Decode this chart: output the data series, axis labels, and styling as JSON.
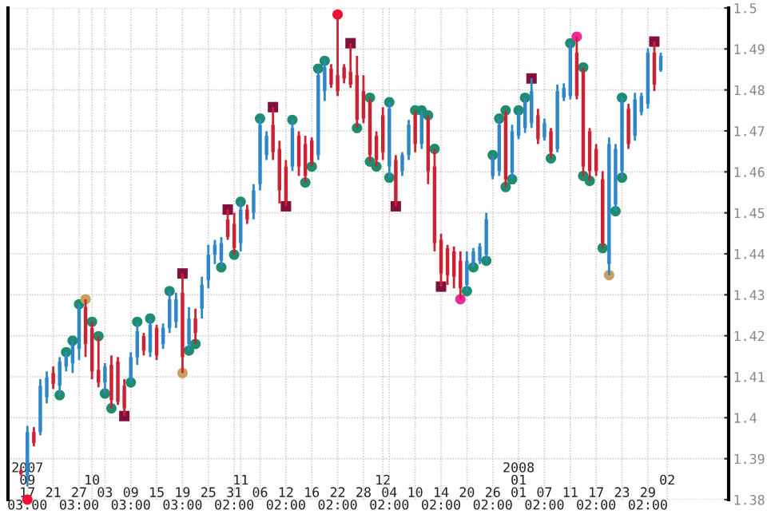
{
  "chart_data": {
    "type": "candlestick",
    "categories": [
      null,
      "2007\n09\n17\n03:00",
      null,
      null,
      null,
      "\n\n21\n",
      null,
      null,
      null,
      "\n\n27\n03:00",
      null,
      "\n10\n\n",
      null,
      "\n\n03\n",
      null,
      null,
      null,
      "\n\n09\n03:00",
      null,
      null,
      null,
      "\n\n15\n",
      null,
      null,
      null,
      "\n\n19\n03:00",
      null,
      null,
      null,
      "\n\n25\n",
      null,
      null,
      null,
      "\n\n31\n02:00",
      "\n11\n\n",
      null,
      null,
      "\n\n06\n",
      null,
      null,
      null,
      "\n\n12\n02:00",
      null,
      null,
      null,
      "\n\n16\n",
      null,
      null,
      null,
      "\n\n22\n02:00",
      null,
      null,
      null,
      "\n\n28\n",
      null,
      null,
      "\n12\n\n",
      "\n\n04\n02:00",
      null,
      null,
      null,
      "\n\n10\n",
      null,
      null,
      null,
      "\n\n14\n02:00",
      null,
      null,
      null,
      "\n\n20\n",
      null,
      null,
      null,
      "\n\n26\n02:00",
      null,
      null,
      null,
      "2008\n01\n01\n",
      null,
      null,
      null,
      "\n\n07\n02:00",
      null,
      null,
      null,
      "\n\n11\n",
      null,
      null,
      null,
      "\n\n17\n02:00",
      null,
      null,
      null,
      "\n\n23\n",
      null,
      null,
      null,
      "\n\n29\n02:00",
      null,
      null,
      "\n02\n\n"
    ],
    "ohlc": [
      [
        1.3871,
        1.3875,
        1.3859,
        1.3863
      ],
      [
        1.386,
        1.398,
        1.3832,
        1.3965
      ],
      [
        1.3965,
        1.3977,
        1.393,
        1.3938
      ],
      [
        1.3965,
        1.4094,
        1.3957,
        1.4078
      ],
      [
        1.405,
        1.4113,
        1.4035,
        1.4098
      ],
      [
        1.4109,
        1.4125,
        1.407,
        1.4082
      ],
      [
        1.4078,
        1.4148,
        1.4055,
        1.4137
      ],
      [
        1.4125,
        1.416,
        1.4113,
        1.4148
      ],
      [
        1.4133,
        1.4188,
        1.4109,
        1.418
      ],
      [
        1.4168,
        1.4277,
        1.4141,
        1.4266
      ],
      [
        1.427,
        1.4289,
        1.4148,
        1.418
      ],
      [
        1.4219,
        1.4234,
        1.4094,
        1.4113
      ],
      [
        1.4117,
        1.4199,
        1.4074,
        1.4086
      ],
      [
        1.4086,
        1.4133,
        1.4059,
        1.4125
      ],
      [
        1.4129,
        1.4152,
        1.4023,
        1.4043
      ],
      [
        1.4137,
        1.4148,
        1.4031,
        1.4039
      ],
      [
        1.4078,
        1.4094,
        1.4004,
        1.4023
      ],
      [
        1.4094,
        1.416,
        1.4086,
        1.4148
      ],
      [
        1.4148,
        1.4234,
        1.4129,
        1.4211
      ],
      [
        1.4199,
        1.4207,
        1.4152,
        1.4164
      ],
      [
        1.416,
        1.4242,
        1.4148,
        1.4227
      ],
      [
        1.4219,
        1.4227,
        1.4141,
        1.4152
      ],
      [
        1.418,
        1.423,
        1.4168,
        1.4219
      ],
      [
        1.4219,
        1.4309,
        1.4207,
        1.4289
      ],
      [
        1.4234,
        1.4305,
        1.4219,
        1.4289
      ],
      [
        1.4305,
        1.4352,
        1.4109,
        1.4148
      ],
      [
        1.418,
        1.427,
        1.4164,
        1.4242
      ],
      [
        1.4242,
        1.4266,
        1.418,
        1.4207
      ],
      [
        1.4266,
        1.4344,
        1.4242,
        1.4324
      ],
      [
        1.4336,
        1.4422,
        1.4316,
        1.4398
      ],
      [
        1.4398,
        1.4434,
        1.4375,
        1.4422
      ],
      [
        1.4383,
        1.4441,
        1.4367,
        1.4426
      ],
      [
        1.4484,
        1.4508,
        1.4434,
        1.4441
      ],
      [
        1.4473,
        1.45,
        1.4398,
        1.4414
      ],
      [
        1.4426,
        1.4527,
        1.4406,
        1.4508
      ],
      [
        1.4508,
        1.452,
        1.4473,
        1.4484
      ],
      [
        1.45,
        1.457,
        1.4484,
        1.4555
      ],
      [
        1.457,
        1.473,
        1.4555,
        1.4715
      ],
      [
        1.4641,
        1.4699,
        1.4629,
        1.4688
      ],
      [
        1.4715,
        1.4758,
        1.4629,
        1.4648
      ],
      [
        1.4656,
        1.4676,
        1.4523,
        1.4555
      ],
      [
        1.4613,
        1.4629,
        1.4516,
        1.4527
      ],
      [
        1.4613,
        1.4727,
        1.4602,
        1.4707
      ],
      [
        1.4688,
        1.4699,
        1.459,
        1.4613
      ],
      [
        1.4668,
        1.4688,
        1.4574,
        1.459
      ],
      [
        1.4676,
        1.4684,
        1.4613,
        1.4625
      ],
      [
        1.4641,
        1.4852,
        1.4629,
        1.4836
      ],
      [
        1.4797,
        1.4871,
        1.4773,
        1.4855
      ],
      [
        1.4852,
        1.4863,
        1.4805,
        1.4813
      ],
      [
        1.4836,
        1.4984,
        1.4785,
        1.4797
      ],
      [
        1.4855,
        1.4863,
        1.4816,
        1.4828
      ],
      [
        1.4844,
        1.4914,
        1.4805,
        1.4813
      ],
      [
        1.4836,
        1.4883,
        1.4707,
        1.4727
      ],
      [
        1.4797,
        1.4836,
        1.4719,
        1.473
      ],
      [
        1.477,
        1.4781,
        1.4625,
        1.4641
      ],
      [
        1.4688,
        1.4699,
        1.4613,
        1.4629
      ],
      [
        1.4738,
        1.4758,
        1.4629,
        1.4648
      ],
      [
        1.4613,
        1.477,
        1.4586,
        1.4754
      ],
      [
        1.4629,
        1.4641,
        1.4516,
        1.4527
      ],
      [
        1.4602,
        1.4648,
        1.459,
        1.4641
      ],
      [
        1.4641,
        1.4727,
        1.4629,
        1.4715
      ],
      [
        1.4738,
        1.475,
        1.4648,
        1.4668
      ],
      [
        1.4668,
        1.475,
        1.4656,
        1.4738
      ],
      [
        1.4727,
        1.4738,
        1.457,
        1.4602
      ],
      [
        1.4613,
        1.4656,
        1.4406,
        1.4426
      ],
      [
        1.4434,
        1.4449,
        1.432,
        1.4352
      ],
      [
        1.4414,
        1.4422,
        1.4324,
        1.4348
      ],
      [
        1.4406,
        1.4418,
        1.4316,
        1.4344
      ],
      [
        1.4383,
        1.4406,
        1.4289,
        1.4316
      ],
      [
        1.4324,
        1.4406,
        1.4309,
        1.4383
      ],
      [
        1.4375,
        1.4414,
        1.4367,
        1.4406
      ],
      [
        1.4383,
        1.4426,
        1.4375,
        1.4418
      ],
      [
        1.4398,
        1.45,
        1.4383,
        1.4484
      ],
      [
        1.459,
        1.4641,
        1.4582,
        1.4633
      ],
      [
        1.4602,
        1.473,
        1.459,
        1.4715
      ],
      [
        1.4738,
        1.475,
        1.4563,
        1.4582
      ],
      [
        1.4598,
        1.4715,
        1.4582,
        1.4699
      ],
      [
        1.4688,
        1.475,
        1.468,
        1.4738
      ],
      [
        1.4707,
        1.4781,
        1.4695,
        1.477
      ],
      [
        1.4719,
        1.4828,
        1.4707,
        1.4797
      ],
      [
        1.4738,
        1.4754,
        1.4668,
        1.468
      ],
      [
        1.4684,
        1.473,
        1.4676,
        1.4719
      ],
      [
        1.4699,
        1.4707,
        1.4633,
        1.4648
      ],
      [
        1.4656,
        1.4813,
        1.4648,
        1.4797
      ],
      [
        1.4781,
        1.4816,
        1.4773,
        1.4805
      ],
      [
        1.4785,
        1.4914,
        1.4777,
        1.4902
      ],
      [
        1.4891,
        1.493,
        1.4777,
        1.4785
      ],
      [
        1.4844,
        1.4855,
        1.459,
        1.4613
      ],
      [
        1.4699,
        1.4707,
        1.4578,
        1.4602
      ],
      [
        1.4656,
        1.4668,
        1.459,
        1.4602
      ],
      [
        1.4582,
        1.4602,
        1.4414,
        1.4426
      ],
      [
        1.4375,
        1.4684,
        1.4348,
        1.4668
      ],
      [
        1.452,
        1.4668,
        1.4504,
        1.4656
      ],
      [
        1.4602,
        1.4781,
        1.4586,
        1.477
      ],
      [
        1.4754,
        1.4766,
        1.4656,
        1.4668
      ],
      [
        1.4688,
        1.4793,
        1.4676,
        1.4777
      ],
      [
        1.4746,
        1.4793,
        1.4738,
        1.4785
      ],
      [
        1.4766,
        1.4902,
        1.4754,
        1.4891
      ],
      [
        1.4891,
        1.4918,
        1.4797,
        1.4813
      ],
      [
        1.4848,
        1.4891,
        1.4844,
        1.4883
      ],
      null
    ],
    "colors": [
      "#cc2233",
      "#2f86c8",
      "#cc2233",
      "#2f86c8",
      "#2f86c8",
      "#cc2233",
      "#2f86c8",
      "#2f86c8",
      "#2f86c8",
      "#2f86c8",
      "#cc2233",
      "#cc2233",
      "#cc2233",
      "#2f86c8",
      "#cc2233",
      "#cc2233",
      "#cc2233",
      "#2f86c8",
      "#2f86c8",
      "#cc2233",
      "#2f86c8",
      "#cc2233",
      "#2f86c8",
      "#2f86c8",
      "#2f86c8",
      "#cc2233",
      "#2f86c8",
      "#cc2233",
      "#2f86c8",
      "#2f86c8",
      "#2f86c8",
      "#2f86c8",
      "#cc2233",
      "#cc2233",
      "#2f86c8",
      "#cc2233",
      "#2f86c8",
      "#2f86c8",
      "#2f86c8",
      "#cc2233",
      "#cc2233",
      "#cc2233",
      "#2f86c8",
      "#cc2233",
      "#cc2233",
      "#cc2233",
      "#2f86c8",
      "#2f86c8",
      "#cc2233",
      "#cc2233",
      "#cc2233",
      "#cc2233",
      "#cc2233",
      "#cc2233",
      "#cc2233",
      "#cc2233",
      "#cc2233",
      "#2f86c8",
      "#cc2233",
      "#2f86c8",
      "#2f86c8",
      "#cc2233",
      "#2f86c8",
      "#cc2233",
      "#cc2233",
      "#cc2233",
      "#cc2233",
      "#cc2233",
      "#cc2233",
      "#2f86c8",
      "#2f86c8",
      "#2f86c8",
      "#2f86c8",
      "#2f86c8",
      "#2f86c8",
      "#cc2233",
      "#2f86c8",
      "#2f86c8",
      "#2f86c8",
      "#2f86c8",
      "#cc2233",
      "#2f86c8",
      "#cc2233",
      "#2f86c8",
      "#2f86c8",
      "#2f86c8",
      "#cc2233",
      "#cc2233",
      "#cc2233",
      "#cc2233",
      "#cc2233",
      "#2f86c8",
      "#2f86c8",
      "#2f86c8",
      "#cc2233",
      "#2f86c8",
      "#2f86c8",
      "#2f86c8",
      "#cc2233",
      "#2f86c8",
      null
    ],
    "series": [
      {
        "type": "scatter",
        "marker": "circle",
        "color": "#1e8c6e",
        "values": [
          null,
          null,
          null,
          null,
          null,
          null,
          null,
          1.416,
          1.4188,
          1.4277,
          null,
          1.4234,
          1.4199,
          null,
          null,
          null,
          null,
          null,
          1.4234,
          null,
          1.4242,
          null,
          null,
          1.4309,
          null,
          null,
          null,
          null,
          null,
          null,
          null,
          null,
          null,
          null,
          1.4527,
          null,
          null,
          1.473,
          null,
          null,
          null,
          null,
          1.4727,
          null,
          null,
          null,
          1.4852,
          1.4871,
          null,
          null,
          null,
          null,
          null,
          null,
          1.4781,
          null,
          null,
          1.477,
          null,
          null,
          null,
          1.475,
          1.475,
          1.4738,
          1.4656,
          null,
          null,
          null,
          null,
          null,
          null,
          null,
          null,
          1.4641,
          1.473,
          1.475,
          null,
          1.475,
          1.4781,
          null,
          null,
          null,
          null,
          null,
          null,
          1.4914,
          null,
          1.4855,
          null,
          null,
          null,
          null,
          null,
          1.4781,
          null,
          null,
          null,
          null,
          null,
          null,
          null
        ]
      },
      {
        "type": "scatter",
        "marker": "circle",
        "color": "#1e8c6e",
        "values": [
          null,
          null,
          null,
          null,
          null,
          null,
          1.4055,
          null,
          null,
          null,
          null,
          null,
          null,
          1.4059,
          1.4023,
          null,
          null,
          1.4086,
          null,
          null,
          null,
          null,
          null,
          null,
          null,
          null,
          1.4164,
          1.418,
          null,
          null,
          null,
          1.4367,
          null,
          1.4398,
          null,
          null,
          null,
          null,
          null,
          null,
          null,
          null,
          null,
          null,
          1.4574,
          1.4613,
          null,
          null,
          null,
          null,
          null,
          null,
          1.4707,
          null,
          1.4625,
          1.4613,
          null,
          1.4586,
          null,
          null,
          null,
          null,
          null,
          null,
          null,
          null,
          null,
          null,
          null,
          1.4309,
          1.4367,
          null,
          1.4383,
          null,
          null,
          1.4563,
          1.4582,
          null,
          null,
          null,
          null,
          null,
          1.4633,
          null,
          null,
          null,
          null,
          1.459,
          1.4578,
          null,
          1.4414,
          null,
          1.4504,
          1.4586,
          null,
          null,
          null,
          null,
          null,
          null,
          null
        ]
      },
      {
        "type": "scatter",
        "marker": "square",
        "color": "#80103c",
        "values": [
          null,
          null,
          null,
          null,
          null,
          null,
          null,
          null,
          null,
          null,
          null,
          null,
          null,
          null,
          null,
          null,
          1.4004,
          null,
          null,
          null,
          null,
          null,
          null,
          null,
          null,
          1.4352,
          null,
          null,
          null,
          null,
          null,
          null,
          1.4508,
          null,
          null,
          null,
          null,
          null,
          null,
          1.4758,
          null,
          1.4516,
          null,
          null,
          null,
          null,
          null,
          null,
          null,
          null,
          null,
          1.4914,
          null,
          null,
          null,
          null,
          null,
          null,
          1.4516,
          null,
          null,
          null,
          null,
          null,
          null,
          1.432,
          null,
          null,
          null,
          null,
          null,
          null,
          null,
          null,
          null,
          null,
          null,
          null,
          null,
          1.4828,
          null,
          null,
          null,
          null,
          null,
          null,
          null,
          null,
          null,
          null,
          null,
          null,
          null,
          null,
          null,
          null,
          null,
          null,
          1.4918,
          null,
          null
        ]
      },
      {
        "type": "scatter",
        "marker": "circle",
        "color": "#c8a060",
        "values": [
          null,
          null,
          null,
          null,
          null,
          null,
          null,
          null,
          null,
          null,
          1.4289,
          null,
          null,
          null,
          null,
          null,
          null,
          null,
          null,
          null,
          null,
          null,
          null,
          null,
          null,
          1.4109,
          null,
          null,
          null,
          null,
          null,
          null,
          null,
          null,
          null,
          null,
          null,
          null,
          null,
          null,
          null,
          null,
          null,
          null,
          null,
          null,
          null,
          null,
          null,
          null,
          null,
          null,
          null,
          null,
          null,
          null,
          null,
          null,
          null,
          null,
          null,
          null,
          null,
          null,
          null,
          null,
          null,
          null,
          null,
          null,
          null,
          null,
          null,
          null,
          null,
          null,
          null,
          null,
          null,
          null,
          null,
          null,
          null,
          null,
          null,
          null,
          null,
          null,
          null,
          null,
          null,
          1.4348,
          null,
          null,
          null,
          null,
          null,
          null,
          null,
          null,
          null
        ]
      },
      {
        "type": "scatter",
        "marker": "circle",
        "color": "#ee1133",
        "values": [
          null,
          1.38,
          null,
          null,
          null,
          null,
          null,
          null,
          null,
          null,
          null,
          null,
          null,
          null,
          null,
          null,
          null,
          null,
          null,
          null,
          null,
          null,
          null,
          null,
          null,
          null,
          null,
          null,
          null,
          null,
          null,
          null,
          null,
          null,
          null,
          null,
          null,
          null,
          null,
          null,
          null,
          null,
          null,
          null,
          null,
          null,
          null,
          null,
          null,
          1.4984,
          null,
          null,
          null,
          null,
          null,
          null,
          null,
          null,
          null,
          null,
          null,
          null,
          null,
          null,
          null,
          null,
          null,
          null,
          null,
          null,
          null,
          null,
          null,
          null,
          null,
          null,
          null,
          null,
          null,
          null,
          null,
          null,
          null,
          null,
          null,
          null,
          null,
          null,
          null,
          null,
          null,
          null,
          null,
          null,
          null,
          null,
          null,
          null,
          null,
          null,
          null
        ]
      },
      {
        "type": "scatter",
        "marker": "circle",
        "color": "#ee2a9a",
        "values": [
          null,
          null,
          null,
          null,
          null,
          null,
          null,
          null,
          null,
          null,
          null,
          null,
          null,
          null,
          null,
          null,
          null,
          null,
          null,
          null,
          null,
          null,
          null,
          null,
          null,
          null,
          null,
          null,
          null,
          null,
          null,
          null,
          null,
          null,
          null,
          null,
          null,
          null,
          null,
          null,
          null,
          null,
          null,
          null,
          null,
          null,
          null,
          null,
          null,
          null,
          null,
          null,
          null,
          null,
          null,
          null,
          null,
          null,
          null,
          null,
          null,
          null,
          null,
          null,
          null,
          null,
          null,
          null,
          1.4289,
          null,
          null,
          null,
          null,
          null,
          null,
          null,
          null,
          null,
          null,
          null,
          null,
          null,
          null,
          null,
          null,
          null,
          1.493,
          null,
          null,
          null,
          null,
          null,
          null,
          null,
          null,
          null,
          null,
          null,
          null,
          null,
          null
        ]
      }
    ],
    "ylim": [
      1.38,
      1.5
    ],
    "yticks": [
      1.38,
      1.39,
      1.4,
      1.41,
      1.42,
      1.43,
      1.44,
      1.45,
      1.46,
      1.47,
      1.48,
      1.49,
      1.5
    ],
    "grid": true
  }
}
